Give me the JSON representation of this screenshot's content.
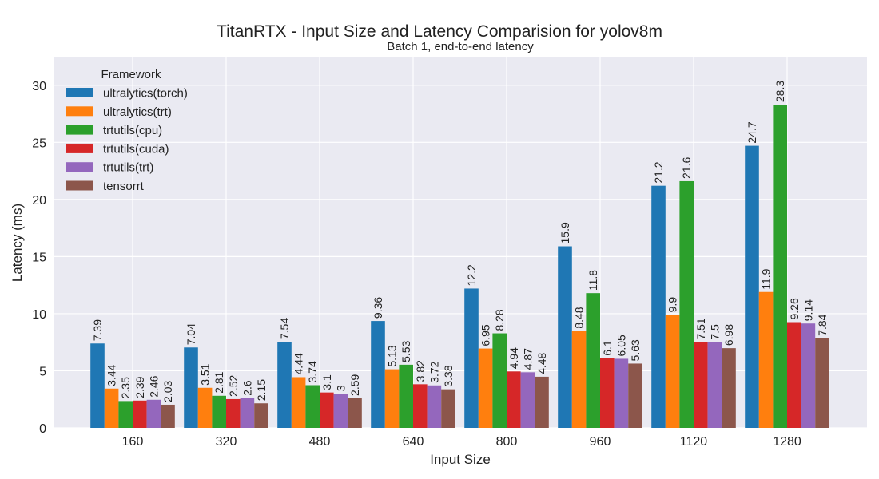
{
  "chart_data": {
    "type": "bar",
    "title": "TitanRTX - Input Size and Latency Comparision for yolov8m",
    "subtitle": "Batch 1, end-to-end latency",
    "xlabel": "Input Size",
    "ylabel": "Latency (ms)",
    "ylim": [
      0,
      32.5
    ],
    "yticks": [
      0,
      5,
      10,
      15,
      20,
      25,
      30
    ],
    "categories": [
      "160",
      "320",
      "480",
      "640",
      "800",
      "960",
      "1120",
      "1280"
    ],
    "grid": true,
    "legend": {
      "title": "Framework",
      "placement": "top-left"
    },
    "series": [
      {
        "name": "ultralytics(torch)",
        "color": "#1f77b4",
        "values": [
          7.39,
          7.04,
          7.54,
          9.36,
          12.2,
          15.9,
          21.2,
          24.7
        ]
      },
      {
        "name": "ultralytics(trt)",
        "color": "#ff7f0e",
        "values": [
          3.44,
          3.51,
          4.44,
          5.13,
          6.95,
          8.48,
          9.9,
          11.9
        ]
      },
      {
        "name": "trtutils(cpu)",
        "color": "#2ca02c",
        "values": [
          2.35,
          2.81,
          3.74,
          5.53,
          8.28,
          11.8,
          21.6,
          28.3
        ]
      },
      {
        "name": "trtutils(cuda)",
        "color": "#d62728",
        "values": [
          2.39,
          2.52,
          3.1,
          3.82,
          4.94,
          6.1,
          7.51,
          9.26
        ]
      },
      {
        "name": "trtutils(trt)",
        "color": "#9467bd",
        "values": [
          2.46,
          2.6,
          3,
          3.72,
          4.87,
          6.05,
          7.5,
          9.14
        ]
      },
      {
        "name": "tensorrt",
        "color": "#8c564b",
        "values": [
          2.03,
          2.15,
          2.59,
          3.38,
          4.48,
          5.63,
          6.98,
          7.84
        ]
      }
    ]
  }
}
